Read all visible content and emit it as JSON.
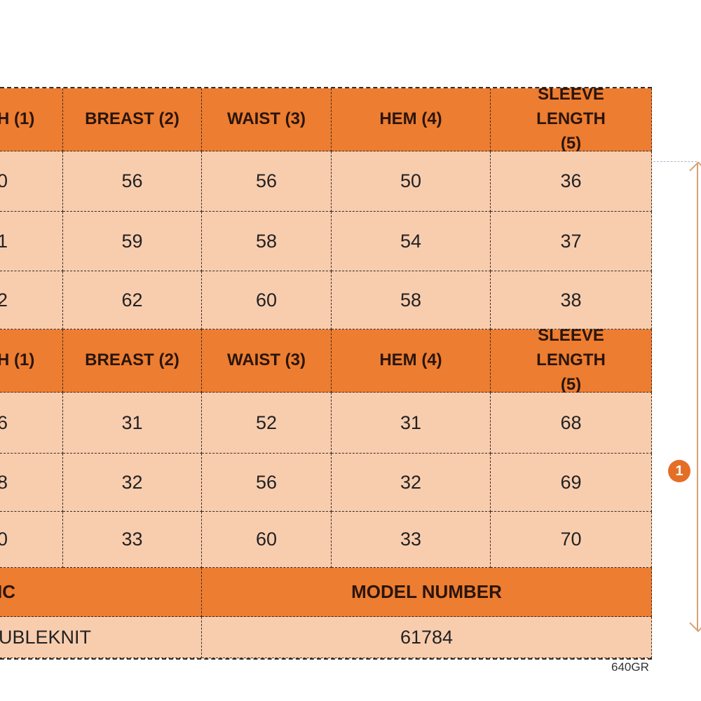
{
  "table1": {
    "headers": [
      "H (1)",
      "BREAST (2)",
      "WAIST (3)",
      "HEM (4)",
      "SLEEVE LENGTH (5)"
    ],
    "rows": [
      [
        "0",
        "56",
        "56",
        "50",
        "36"
      ],
      [
        "1",
        "59",
        "58",
        "54",
        "37"
      ],
      [
        "2",
        "62",
        "60",
        "58",
        "38"
      ]
    ]
  },
  "table2": {
    "headers": [
      "H (1)",
      "BREAST (2)",
      "WAIST (3)",
      "HEM (4)",
      "SLEEVE LENGTH (5)"
    ],
    "rows": [
      [
        "6",
        "31",
        "52",
        "31",
        "68"
      ],
      [
        "8",
        "32",
        "56",
        "32",
        "69"
      ],
      [
        "0",
        "33",
        "60",
        "33",
        "70"
      ]
    ]
  },
  "fabric": {
    "header": "IC",
    "value": "UBLEKNIT"
  },
  "model": {
    "header": "MODEL NUMBER",
    "value": "61784"
  },
  "tag": "640GR",
  "marker": "1",
  "colors": {
    "header": "#ED7D31",
    "cell": "#F8CDAE"
  }
}
